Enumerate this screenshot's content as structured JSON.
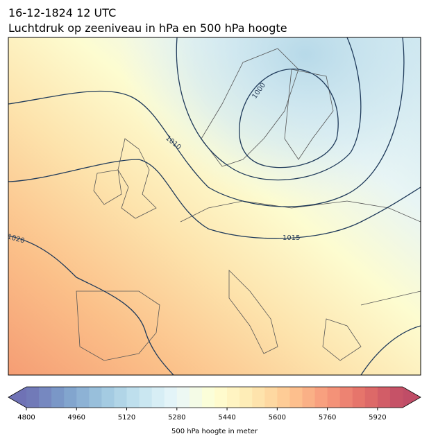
{
  "title": "16-12-1824 12 UTC",
  "subtitle": "Luchtdruk op zeeniveau in hPa en 500 hPa hoogte",
  "contour_labels": [
    "1000",
    "1010",
    "1015",
    "1020"
  ],
  "colorbar": {
    "label": "500 hPa hoogte in meter",
    "lim": [
      4800,
      6000
    ],
    "segments": 30,
    "ticks": [
      4800,
      4960,
      5120,
      5280,
      5440,
      5600,
      5760,
      5920
    ]
  }
}
